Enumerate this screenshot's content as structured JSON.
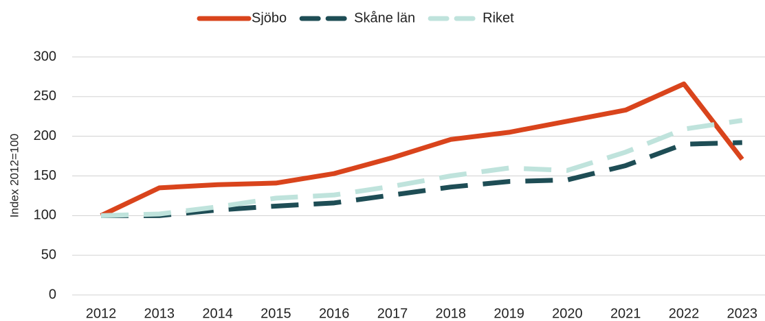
{
  "chart_data": {
    "type": "line",
    "y_label": "Index 2012=100",
    "categories": [
      "2012",
      "2013",
      "2014",
      "2015",
      "2016",
      "2017",
      "2018",
      "2019",
      "2020",
      "2021",
      "2022",
      "2023"
    ],
    "series": [
      {
        "name": "Sjöbo",
        "color": "#d9441c",
        "dash": false,
        "values": [
          100,
          135,
          139,
          141,
          153,
          173,
          196,
          205,
          219,
          233,
          266,
          171
        ]
      },
      {
        "name": "Skåne län",
        "color": "#1e4d55",
        "dash": true,
        "values": [
          100,
          100,
          107,
          112,
          116,
          126,
          136,
          143,
          145,
          163,
          190,
          192
        ]
      },
      {
        "name": "Riket",
        "color": "#bfe3dc",
        "dash": true,
        "values": [
          100,
          102,
          111,
          122,
          126,
          137,
          150,
          160,
          157,
          180,
          209,
          220
        ]
      }
    ],
    "ylim": [
      0,
      300
    ],
    "yticks": [
      0,
      50,
      100,
      150,
      200,
      250,
      300
    ],
    "grid": true,
    "legend": "top"
  }
}
